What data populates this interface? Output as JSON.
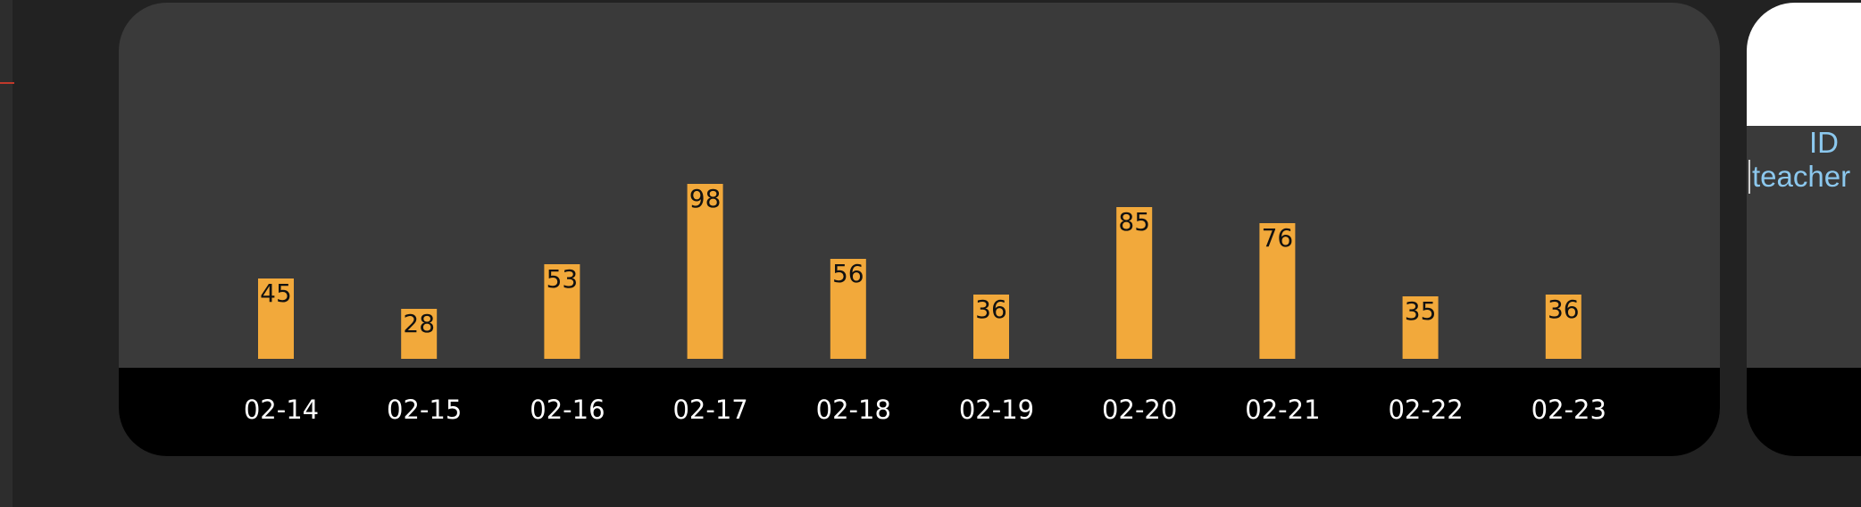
{
  "colors": {
    "bar": "#f2a93b",
    "panel": "#3a3a3a",
    "axis_band": "#000000",
    "background": "#222222",
    "tick_text": "#ffffff",
    "bar_label_text": "#111111",
    "accent_blue": "#8cc8ee"
  },
  "chart_data": {
    "type": "bar",
    "categories": [
      "02-14",
      "02-15",
      "02-16",
      "02-17",
      "02-18",
      "02-19",
      "02-20",
      "02-21",
      "02-22",
      "02-23"
    ],
    "values": [
      45,
      28,
      53,
      98,
      56,
      36,
      85,
      76,
      35,
      36
    ],
    "title": "",
    "xlabel": "",
    "ylabel": "",
    "ylim": [
      0,
      100
    ],
    "grid": false,
    "data_labels": true
  },
  "side_card": {
    "id_label": "ID",
    "name_label": "teacher"
  }
}
